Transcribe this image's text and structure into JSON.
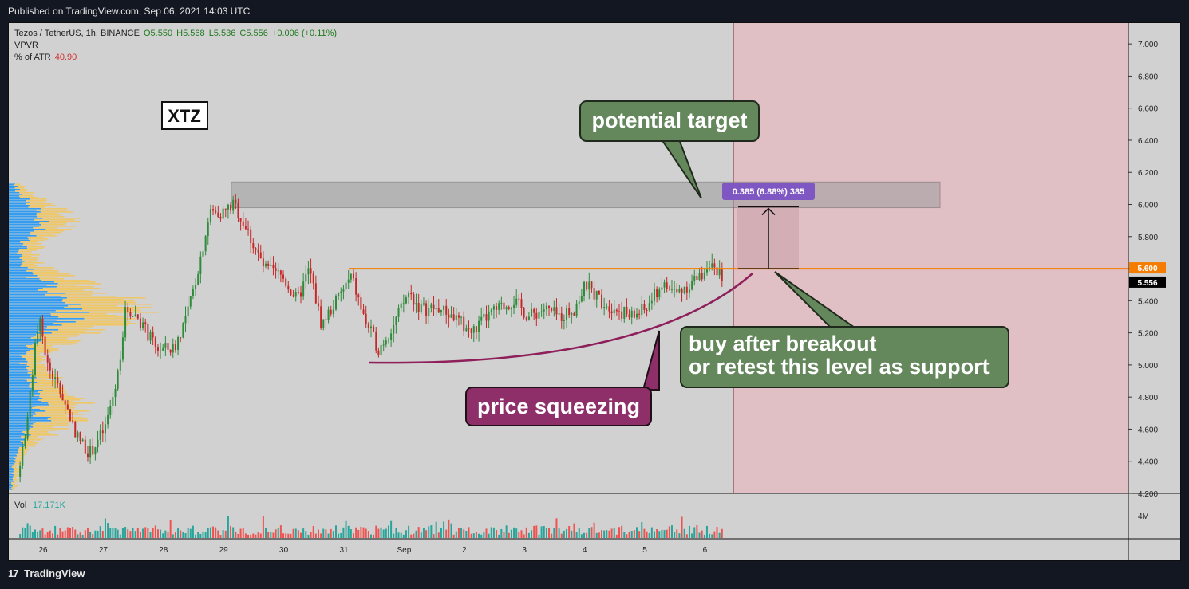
{
  "header": {
    "published": "Published on TradingView.com, Sep 06, 2021 14:03 UTC"
  },
  "footer": {
    "brand": "TradingView",
    "logo_glyph": "17"
  },
  "legend": {
    "symbol": "Tezos / TetherUS, 1h, BINANCE",
    "open": "O5.550",
    "high": "H5.568",
    "low": "L5.536",
    "close": "C5.556",
    "change": "+0.006 (+0.11%)",
    "indicator1": "VPVR",
    "indicator2_name": "% of ATR",
    "indicator2_value": "40.90",
    "volume_label": "Vol",
    "volume_value": "17.171K"
  },
  "annotations": {
    "ticker": "XTZ",
    "target": "potential target",
    "breakout_line1": "buy after breakout",
    "breakout_line2": "or retest this level as support",
    "squeeze": "price squeezing",
    "measure": "0.385 (6.88%) 385"
  },
  "colors": {
    "up": "#26a69a",
    "down": "#ef5350",
    "level": "#f57c00",
    "green_box": "#64875c",
    "purple_box": "#8e2f6a",
    "measure_badge": "#7e57c2",
    "shade": "#e0bfc5",
    "vpvr_blue": "#2196f3",
    "vpvr_yellow": "#f6c344"
  },
  "chart_data": {
    "type": "candlestick",
    "interval": "1h",
    "x_ticks": [
      "26",
      "27",
      "28",
      "29",
      "30",
      "31",
      "Sep",
      "2",
      "3",
      "4",
      "5",
      "6"
    ],
    "y_ticks": [
      "4.200",
      "4.400",
      "4.600",
      "4.800",
      "5.000",
      "5.200",
      "5.400",
      "5.600",
      "5.800",
      "6.000",
      "6.200",
      "6.400",
      "6.600",
      "6.800",
      "7.000"
    ],
    "ylim": [
      4.2,
      7.1
    ],
    "volume_tick": "4M",
    "last_price": "5.556",
    "resistance_level": "5.600",
    "resistance_value": 5.6,
    "target_zone": [
      5.98,
      6.14
    ],
    "measure_from": 5.6,
    "measure_to": 5.985,
    "price_path": [
      [
        0,
        4.3
      ],
      [
        0.18,
        4.7
      ],
      [
        0.35,
        5.3
      ],
      [
        0.5,
        5.0
      ],
      [
        0.75,
        4.8
      ],
      [
        1.0,
        4.55
      ],
      [
        1.2,
        4.45
      ],
      [
        1.45,
        4.6
      ],
      [
        1.65,
        4.9
      ],
      [
        1.8,
        5.35
      ],
      [
        2.0,
        5.3
      ],
      [
        2.3,
        5.1
      ],
      [
        2.6,
        5.1
      ],
      [
        2.85,
        5.35
      ],
      [
        3.0,
        5.6
      ],
      [
        3.2,
        5.95
      ],
      [
        3.4,
        5.95
      ],
      [
        3.6,
        6.0
      ],
      [
        3.8,
        5.85
      ],
      [
        4.1,
        5.6
      ],
      [
        4.4,
        5.55
      ],
      [
        4.65,
        5.4
      ],
      [
        4.85,
        5.6
      ],
      [
        5.05,
        5.25
      ],
      [
        5.3,
        5.4
      ],
      [
        5.55,
        5.55
      ],
      [
        5.75,
        5.3
      ],
      [
        6.0,
        5.1
      ],
      [
        6.25,
        5.25
      ],
      [
        6.5,
        5.45
      ],
      [
        6.7,
        5.35
      ],
      [
        7.0,
        5.35
      ],
      [
        7.25,
        5.3
      ],
      [
        7.55,
        5.2
      ],
      [
        7.8,
        5.3
      ],
      [
        8.0,
        5.35
      ],
      [
        8.25,
        5.4
      ],
      [
        8.5,
        5.3
      ],
      [
        8.75,
        5.35
      ],
      [
        9.0,
        5.3
      ],
      [
        9.25,
        5.35
      ],
      [
        9.45,
        5.5
      ],
      [
        9.7,
        5.4
      ],
      [
        9.95,
        5.35
      ],
      [
        10.2,
        5.3
      ],
      [
        10.45,
        5.35
      ],
      [
        10.7,
        5.5
      ],
      [
        10.95,
        5.45
      ],
      [
        11.15,
        5.5
      ],
      [
        11.35,
        5.55
      ],
      [
        11.5,
        5.65
      ],
      [
        11.6,
        5.55
      ],
      [
        11.7,
        5.56
      ]
    ]
  }
}
